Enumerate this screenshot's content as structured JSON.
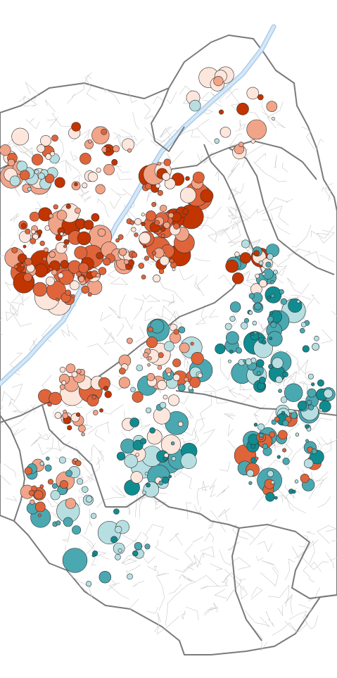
{
  "map": {
    "colors": {
      "background": "#ffffff",
      "land": "#ffffff",
      "river_fill": "#d6e8f7",
      "river_edge": "#a9cbea",
      "boundary": "#7a7a7a",
      "street": "#c8c8c8",
      "symbol_outline": "#333333"
    },
    "legend_shown": false,
    "symbol_classes": [
      {
        "id": "strong-positive",
        "color": "#c23400"
      },
      {
        "id": "positive",
        "color": "#e0643a"
      },
      {
        "id": "mild-positive",
        "color": "#f2a488"
      },
      {
        "id": "neutral",
        "color": "#fde6dc"
      },
      {
        "id": "mild-negative",
        "color": "#b7dfe2"
      },
      {
        "id": "negative",
        "color": "#4aa8b1"
      },
      {
        "id": "strong-negative",
        "color": "#0f8c90"
      }
    ]
  }
}
